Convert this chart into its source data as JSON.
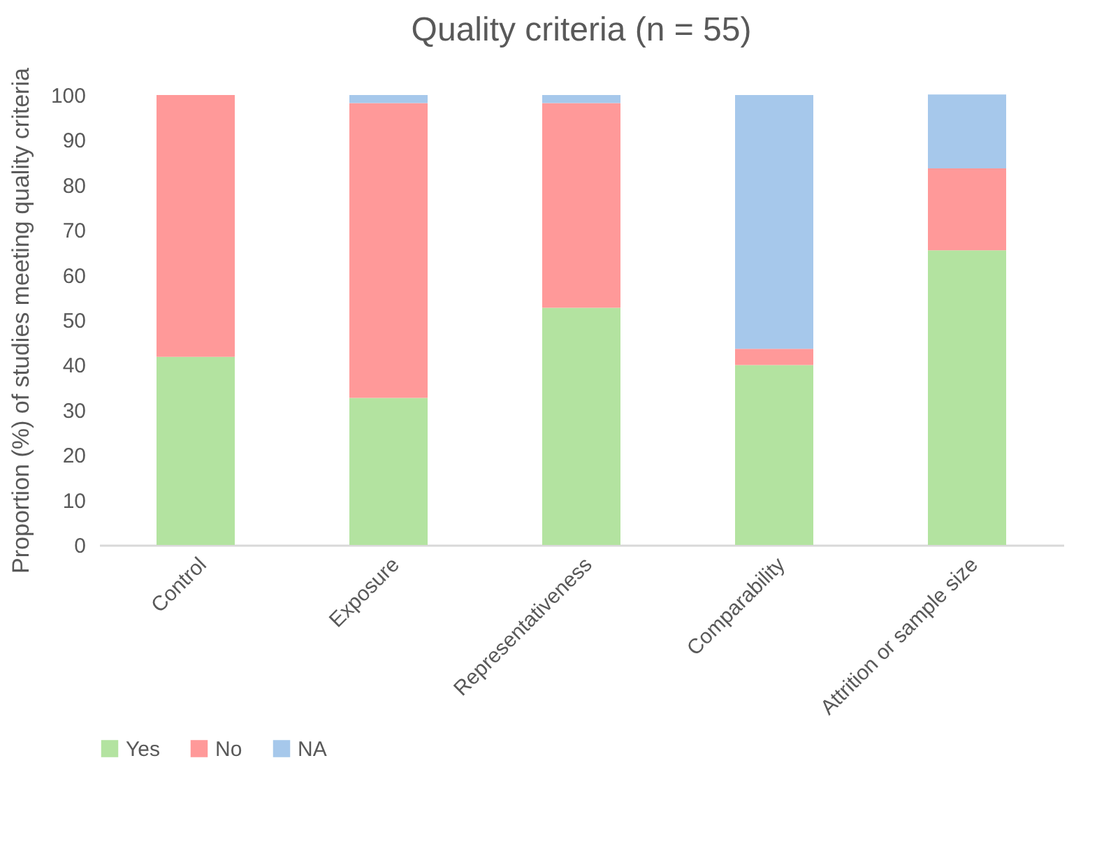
{
  "chart_data": {
    "type": "bar",
    "title": "Quality criteria (n = 55)",
    "ylabel": "Proportion (%) of studies meeting quality criteria",
    "categories": [
      "Control",
      "Exposure",
      "Representativeness",
      "Comparability",
      "Attrition or sample size"
    ],
    "series": [
      {
        "name": "Yes",
        "color": "#b3e3a0",
        "values": [
          41.8,
          32.7,
          52.7,
          40.0,
          65.5
        ]
      },
      {
        "name": "No",
        "color": "#ff9999",
        "values": [
          58.2,
          65.5,
          45.5,
          3.6,
          18.2
        ]
      },
      {
        "name": "NA",
        "color": "#a6c8eb",
        "values": [
          0,
          1.8,
          1.8,
          56.4,
          16.4
        ]
      }
    ],
    "stacked": true,
    "ylim": [
      0,
      100
    ],
    "yticks": [
      0,
      10,
      20,
      30,
      40,
      50,
      60,
      70,
      80,
      90,
      100
    ],
    "grid": false,
    "legend": "bottom"
  }
}
